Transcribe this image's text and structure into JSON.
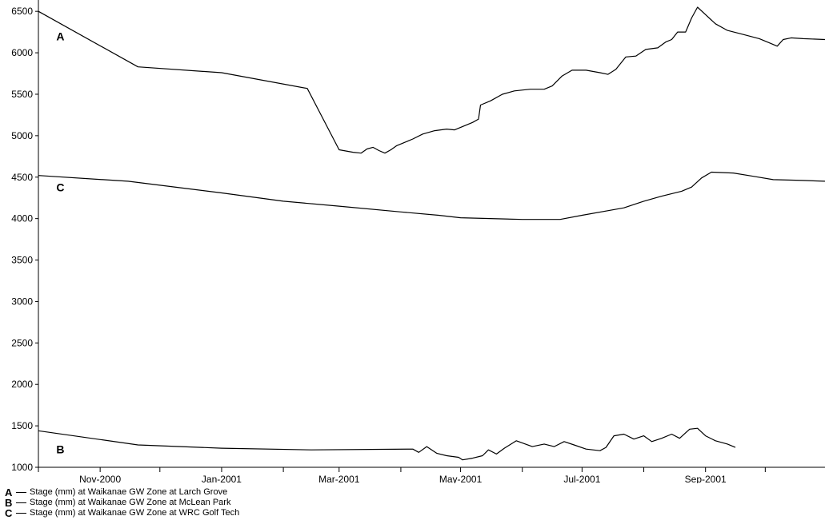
{
  "chart_data": {
    "type": "line",
    "xlabel": "",
    "ylabel": "",
    "ylim": [
      1000,
      6550
    ],
    "xlim": [
      "2000-10-01",
      "2001-10-31"
    ],
    "y_ticks": [
      1000,
      1500,
      2000,
      2500,
      3000,
      3500,
      4000,
      4500,
      5000,
      5500,
      6000,
      6500
    ],
    "x_tick_labels": [
      {
        "date": "2000-11-01",
        "label": "Nov-2000"
      },
      {
        "date": "2001-01-01",
        "label": "Jan-2001"
      },
      {
        "date": "2001-03-01",
        "label": "Mar-2001"
      },
      {
        "date": "2001-05-01",
        "label": "May-2001"
      },
      {
        "date": "2001-07-01",
        "label": "Jul-2001"
      },
      {
        "date": "2001-09-01",
        "label": "Sep-2001"
      }
    ],
    "x_minor_ticks": [
      "2000-10-01",
      "2000-12-01",
      "2001-02-01",
      "2001-04-01",
      "2001-06-01",
      "2001-08-01",
      "2001-10-01"
    ],
    "grid": false,
    "legend_placement": "bottom-left",
    "series": [
      {
        "id": "A",
        "name": "Stage (mm) at Waikanae GW Zone at Larch Grove",
        "label_at": {
          "date": "2000-10-10",
          "value": 6150
        },
        "points": [
          [
            "2000-10-01",
            6500
          ],
          [
            "2000-11-20",
            5830
          ],
          [
            "2001-01-01",
            5760
          ],
          [
            "2001-02-13",
            5570
          ],
          [
            "2001-03-01",
            4830
          ],
          [
            "2001-03-08",
            4800
          ],
          [
            "2001-03-12",
            4790
          ],
          [
            "2001-03-15",
            4840
          ],
          [
            "2001-03-18",
            4860
          ],
          [
            "2001-03-21",
            4820
          ],
          [
            "2001-03-24",
            4790
          ],
          [
            "2001-03-27",
            4830
          ],
          [
            "2001-03-30",
            4880
          ],
          [
            "2001-04-03",
            4920
          ],
          [
            "2001-04-07",
            4960
          ],
          [
            "2001-04-12",
            5020
          ],
          [
            "2001-04-18",
            5060
          ],
          [
            "2001-04-24",
            5080
          ],
          [
            "2001-04-28",
            5070
          ],
          [
            "2001-05-02",
            5110
          ],
          [
            "2001-05-07",
            5160
          ],
          [
            "2001-05-10",
            5200
          ],
          [
            "2001-05-11",
            5370
          ],
          [
            "2001-05-16",
            5420
          ],
          [
            "2001-05-22",
            5500
          ],
          [
            "2001-05-28",
            5540
          ],
          [
            "2001-06-05",
            5560
          ],
          [
            "2001-06-12",
            5560
          ],
          [
            "2001-06-16",
            5600
          ],
          [
            "2001-06-21",
            5720
          ],
          [
            "2001-06-26",
            5790
          ],
          [
            "2001-07-03",
            5790
          ],
          [
            "2001-07-10",
            5760
          ],
          [
            "2001-07-14",
            5740
          ],
          [
            "2001-07-18",
            5800
          ],
          [
            "2001-07-23",
            5950
          ],
          [
            "2001-07-28",
            5960
          ],
          [
            "2001-08-02",
            6040
          ],
          [
            "2001-08-08",
            6060
          ],
          [
            "2001-08-12",
            6130
          ],
          [
            "2001-08-15",
            6160
          ],
          [
            "2001-08-18",
            6250
          ],
          [
            "2001-08-22",
            6250
          ],
          [
            "2001-08-25",
            6420
          ],
          [
            "2001-08-28",
            6550
          ],
          [
            "2001-09-01",
            6460
          ],
          [
            "2001-09-06",
            6350
          ],
          [
            "2001-09-12",
            6270
          ],
          [
            "2001-09-20",
            6220
          ],
          [
            "2001-09-28",
            6170
          ],
          [
            "2001-10-03",
            6120
          ],
          [
            "2001-10-07",
            6080
          ],
          [
            "2001-10-10",
            6160
          ],
          [
            "2001-10-14",
            6180
          ],
          [
            "2001-10-20",
            6170
          ],
          [
            "2001-10-31",
            6160
          ]
        ]
      },
      {
        "id": "B",
        "name": "Stage (mm) at Waikanae GW Zone at McLean Park",
        "label_at": {
          "date": "2000-10-10",
          "value": 1170
        },
        "points": [
          [
            "2000-10-01",
            1440
          ],
          [
            "2000-11-20",
            1270
          ],
          [
            "2001-01-01",
            1230
          ],
          [
            "2001-02-15",
            1210
          ],
          [
            "2001-04-07",
            1220
          ],
          [
            "2001-04-10",
            1180
          ],
          [
            "2001-04-14",
            1250
          ],
          [
            "2001-04-19",
            1170
          ],
          [
            "2001-04-24",
            1140
          ],
          [
            "2001-04-30",
            1120
          ],
          [
            "2001-05-02",
            1090
          ],
          [
            "2001-05-07",
            1110
          ],
          [
            "2001-05-12",
            1140
          ],
          [
            "2001-05-15",
            1210
          ],
          [
            "2001-05-19",
            1160
          ],
          [
            "2001-05-23",
            1230
          ],
          [
            "2001-05-29",
            1320
          ],
          [
            "2001-06-06",
            1250
          ],
          [
            "2001-06-12",
            1280
          ],
          [
            "2001-06-17",
            1250
          ],
          [
            "2001-06-22",
            1310
          ],
          [
            "2001-06-27",
            1270
          ],
          [
            "2001-07-03",
            1220
          ],
          [
            "2001-07-10",
            1200
          ],
          [
            "2001-07-13",
            1240
          ],
          [
            "2001-07-17",
            1380
          ],
          [
            "2001-07-22",
            1400
          ],
          [
            "2001-07-27",
            1340
          ],
          [
            "2001-08-01",
            1380
          ],
          [
            "2001-08-05",
            1310
          ],
          [
            "2001-08-10",
            1350
          ],
          [
            "2001-08-15",
            1400
          ],
          [
            "2001-08-19",
            1350
          ],
          [
            "2001-08-24",
            1460
          ],
          [
            "2001-08-28",
            1470
          ],
          [
            "2001-09-01",
            1380
          ],
          [
            "2001-09-06",
            1320
          ],
          [
            "2001-09-12",
            1280
          ],
          [
            "2001-09-16",
            1240
          ]
        ]
      },
      {
        "id": "C",
        "name": "Stage (mm) at Waikanae GW Zone at WRC Golf Tech",
        "label_at": {
          "date": "2000-10-10",
          "value": 4330
        },
        "points": [
          [
            "2000-10-01",
            4520
          ],
          [
            "2000-11-15",
            4450
          ],
          [
            "2001-01-01",
            4310
          ],
          [
            "2001-02-01",
            4210
          ],
          [
            "2001-03-01",
            4150
          ],
          [
            "2001-04-01",
            4080
          ],
          [
            "2001-04-20",
            4040
          ],
          [
            "2001-05-01",
            4010
          ],
          [
            "2001-06-01",
            3990
          ],
          [
            "2001-06-20",
            3990
          ],
          [
            "2001-07-01",
            4040
          ],
          [
            "2001-07-15",
            4100
          ],
          [
            "2001-07-22",
            4130
          ],
          [
            "2001-08-01",
            4210
          ],
          [
            "2001-08-10",
            4270
          ],
          [
            "2001-08-20",
            4330
          ],
          [
            "2001-08-25",
            4380
          ],
          [
            "2001-08-30",
            4490
          ],
          [
            "2001-09-04",
            4560
          ],
          [
            "2001-09-15",
            4550
          ],
          [
            "2001-09-25",
            4510
          ],
          [
            "2001-10-05",
            4470
          ],
          [
            "2001-10-20",
            4460
          ],
          [
            "2001-10-31",
            4450
          ]
        ]
      }
    ]
  }
}
